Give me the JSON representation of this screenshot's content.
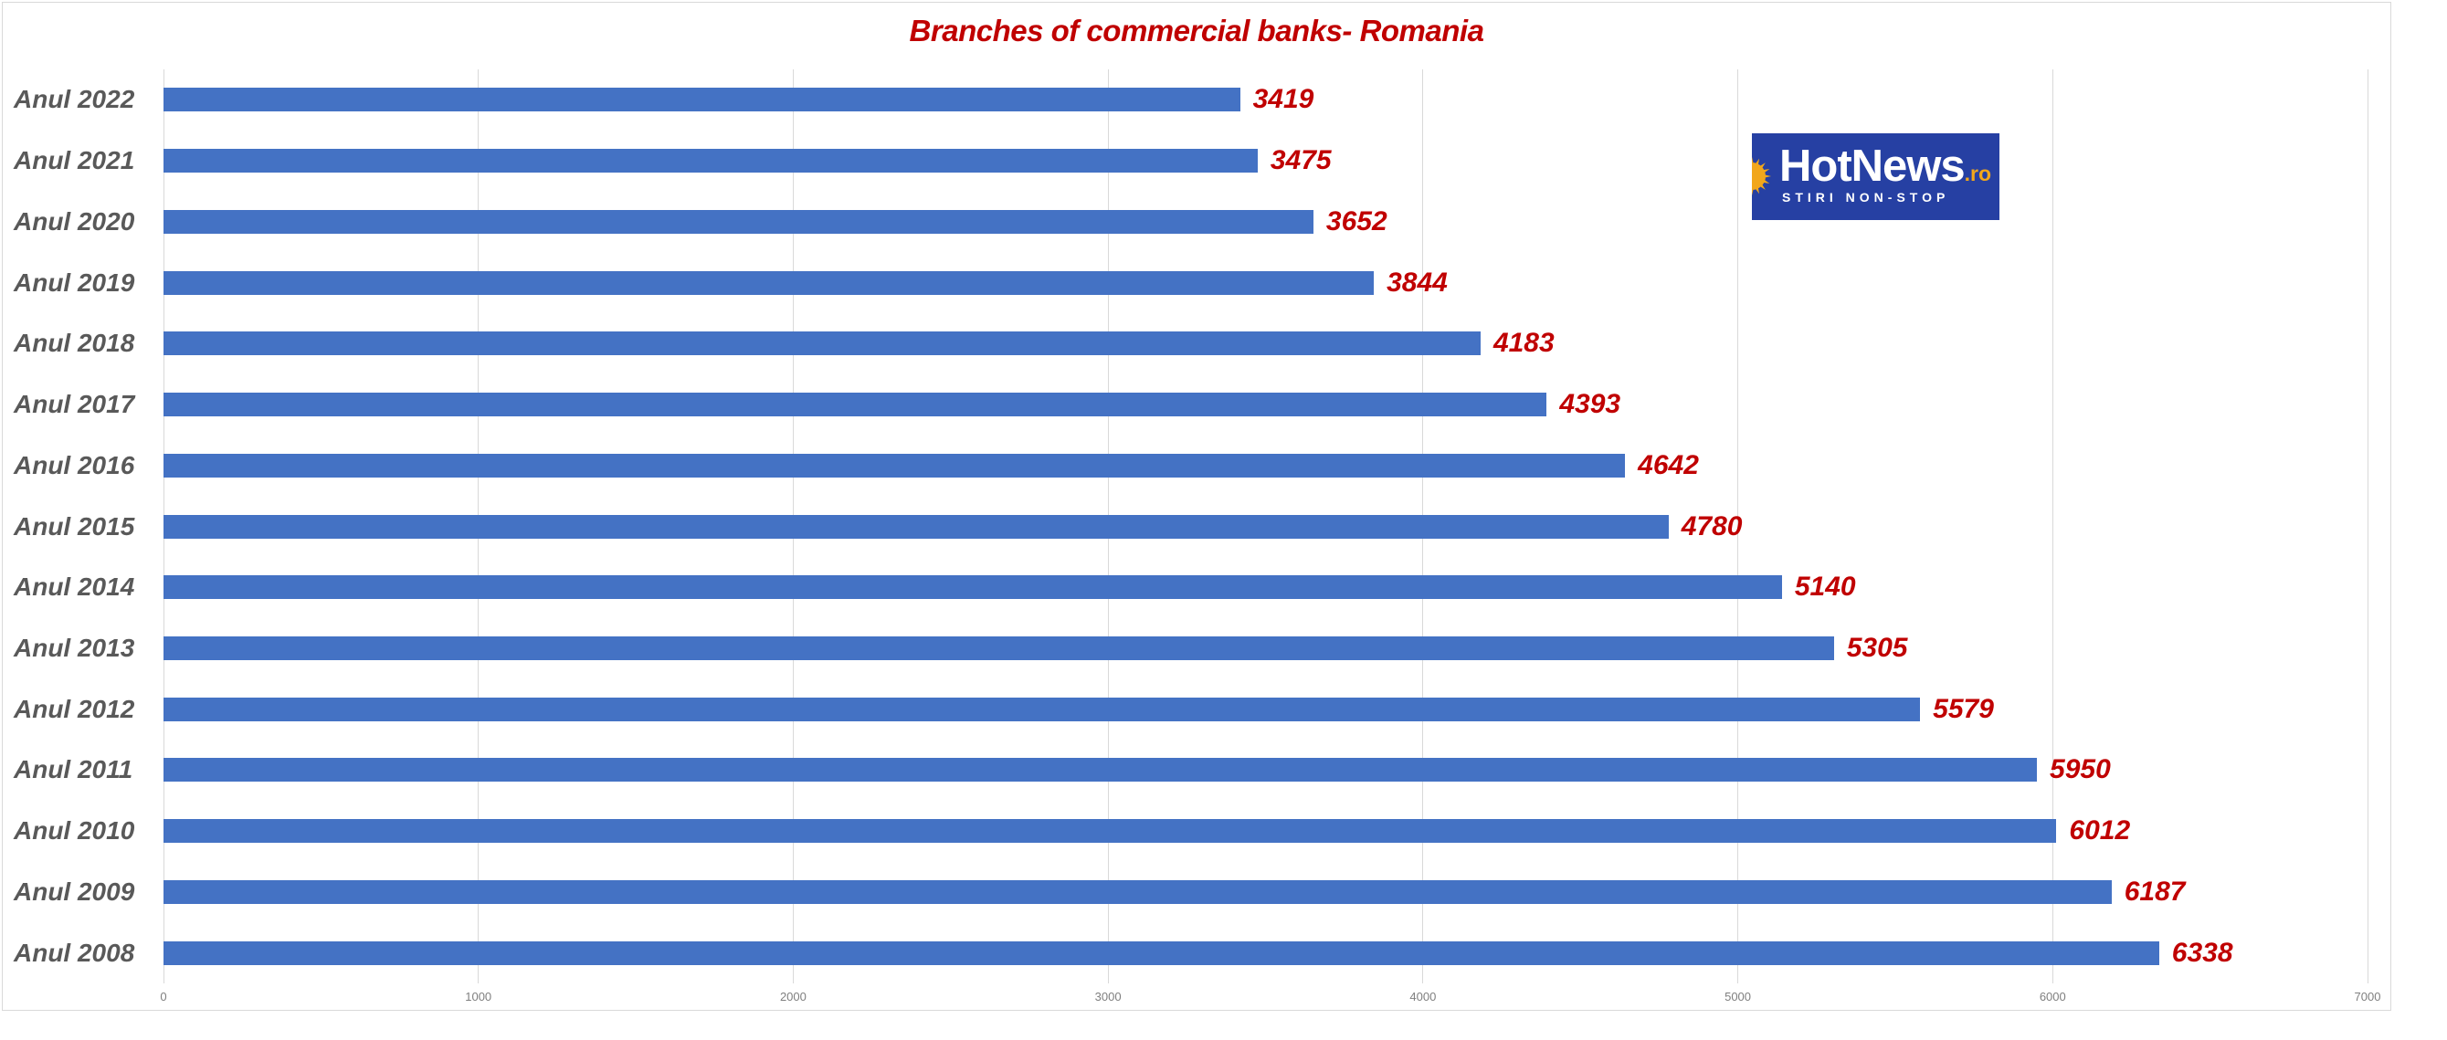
{
  "title": "Branches of commercial banks- Romania",
  "logo": {
    "name": "HotNews",
    "suffix": ".ro",
    "tagline": "STIRI NON-STOP",
    "background_color": "#2640a3",
    "suffix_color": "#f2a71b",
    "sun_icon_color": "#f2a71b"
  },
  "colors": {
    "bar": "#4472c4",
    "value_label": "#c00000",
    "title": "#c00000",
    "category_label": "#595959",
    "gridline": "#d9d9d9",
    "tick_label": "#7f7f7f",
    "background": "#ffffff"
  },
  "chart_data": {
    "type": "bar",
    "orientation": "horizontal",
    "title": "Branches of commercial banks- Romania",
    "categories": [
      "Anul 2022",
      "Anul 2021",
      "Anul 2020",
      "Anul 2019",
      "Anul 2018",
      "Anul 2017",
      "Anul 2016",
      "Anul 2015",
      "Anul 2014",
      "Anul 2013",
      "Anul 2012",
      "Anul 2011",
      "Anul 2010",
      "Anul 2009",
      "Anul 2008"
    ],
    "values": [
      3419,
      3475,
      3652,
      3844,
      4183,
      4393,
      4642,
      4780,
      5140,
      5305,
      5579,
      5950,
      6012,
      6187,
      6338
    ],
    "xlabel": "",
    "ylabel": "",
    "xlim": [
      0,
      7000
    ],
    "x_ticks": [
      0,
      1000,
      2000,
      3000,
      4000,
      5000,
      6000,
      7000
    ],
    "grid": true,
    "legend": false,
    "data_labels": true
  }
}
